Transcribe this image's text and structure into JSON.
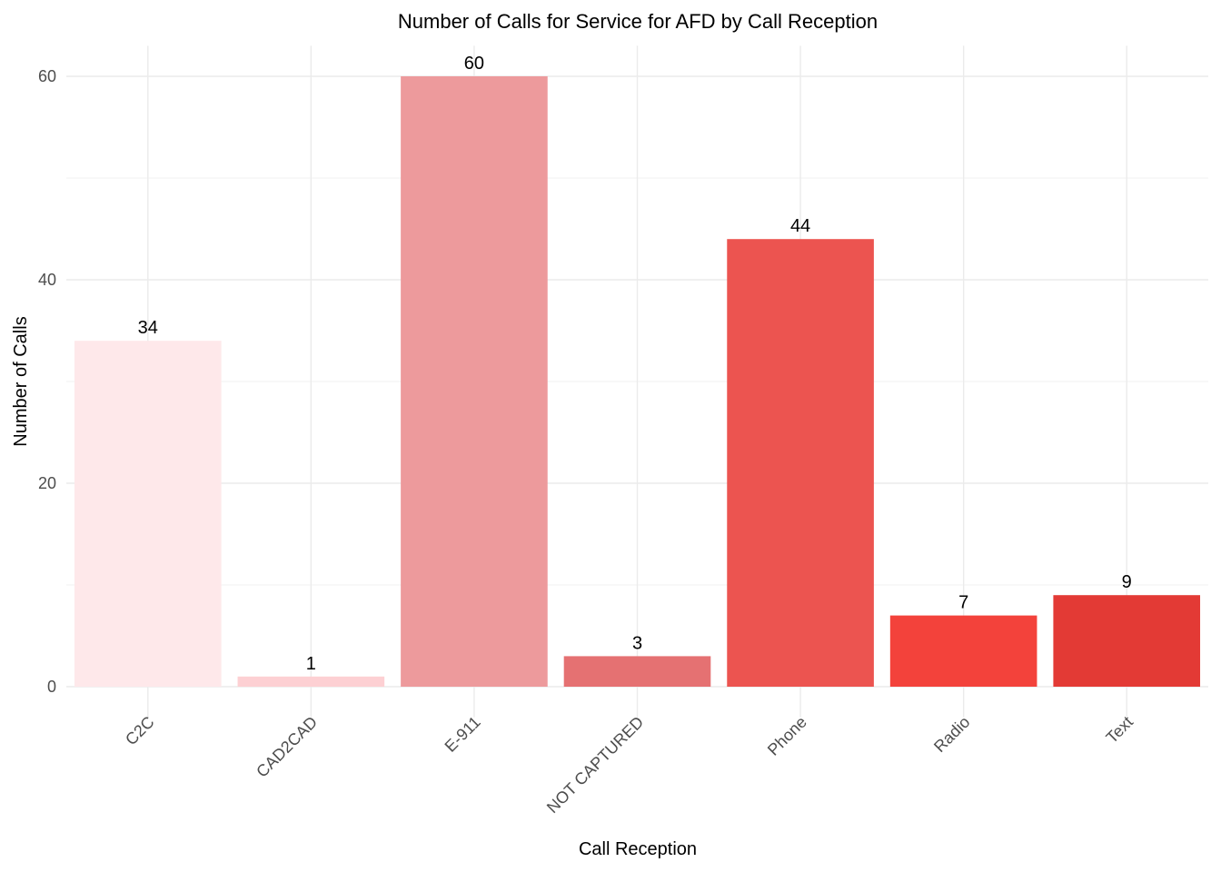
{
  "chart_data": {
    "type": "bar",
    "title": "Number of Calls for Service for AFD by Call Reception",
    "xlabel": "Call Reception",
    "ylabel": "Number of Calls",
    "categories": [
      "C2C",
      "CAD2CAD",
      "E-911",
      "NOT CAPTURED",
      "Phone",
      "Radio",
      "Text"
    ],
    "values": [
      34,
      1,
      60,
      3,
      44,
      7,
      9
    ],
    "colors": [
      "#FEE8EA",
      "#FDD0D3",
      "#ED9A9C",
      "#E57172",
      "#EC5450",
      "#F3423B",
      "#E33A35"
    ],
    "yticks": [
      0,
      20,
      40,
      60
    ],
    "ylim": [
      -3,
      63
    ],
    "grid": true,
    "legend": "none",
    "tick_label_rotation": -45
  }
}
